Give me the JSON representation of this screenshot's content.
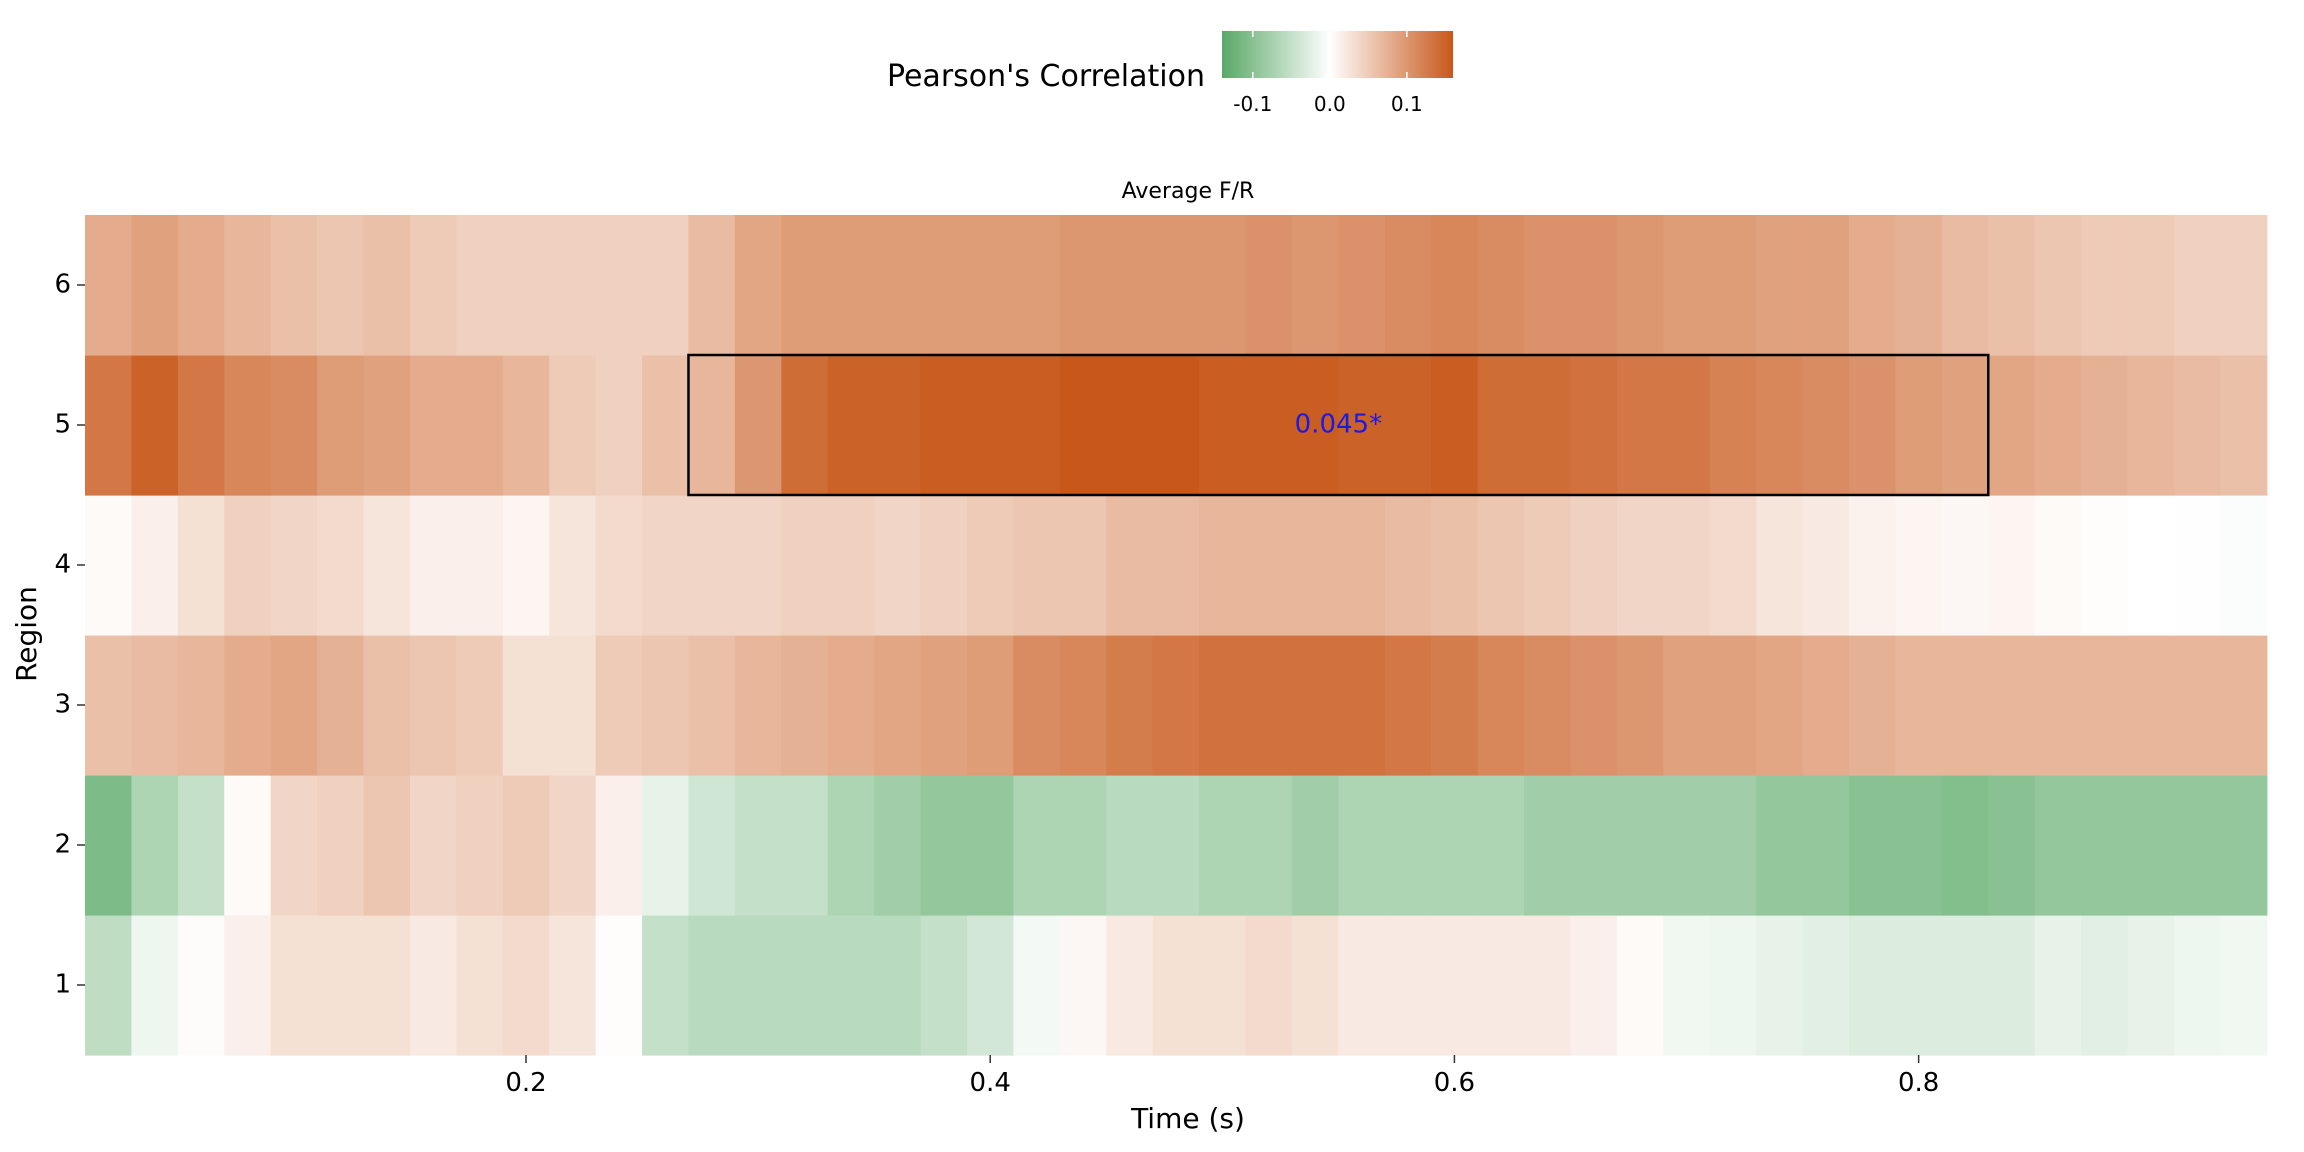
{
  "chart_data": {
    "type": "heatmap",
    "title": "Average F/R",
    "xlabel": "Time (s)",
    "ylabel": "Region",
    "xlim": [
      0.01,
      0.96
    ],
    "x_ticks": [
      "0.2",
      "0.4",
      "0.6",
      "0.8"
    ],
    "x_tick_values": [
      0.2,
      0.4,
      0.6,
      0.8
    ],
    "y_ticks": [
      "1",
      "2",
      "3",
      "4",
      "5",
      "6"
    ],
    "time_start": 0.01,
    "time_step": 0.02,
    "legend": {
      "title": "Pearson's Correlation",
      "ticks": [
        "-0.1",
        "0.0",
        "0.1"
      ],
      "tick_values": [
        -0.1,
        0.0,
        0.1
      ],
      "min": -0.14,
      "max": 0.16,
      "low_color": "#5aa867",
      "mid_color": "#ffffff",
      "high_color": "#c8581a",
      "position": "top"
    },
    "rows": [
      {
        "region": "1",
        "values": [
          -0.055,
          -0.015,
          0.003,
          0.015,
          0.03,
          0.03,
          0.03,
          0.02,
          0.03,
          0.035,
          0.025,
          0.002,
          -0.05,
          -0.06,
          -0.06,
          -0.06,
          -0.06,
          -0.06,
          -0.05,
          -0.038,
          -0.01,
          0.008,
          0.02,
          0.03,
          0.03,
          0.035,
          0.03,
          0.02,
          0.02,
          0.02,
          0.02,
          0.02,
          0.015,
          0.005,
          -0.012,
          -0.015,
          -0.02,
          -0.025,
          -0.03,
          -0.03,
          -0.03,
          -0.03,
          -0.02,
          -0.025,
          -0.02,
          -0.015,
          -0.012
        ]
      },
      {
        "region": "2",
        "values": [
          -0.11,
          -0.07,
          -0.05,
          0.005,
          0.04,
          0.045,
          0.055,
          0.04,
          0.045,
          0.05,
          0.04,
          0.015,
          -0.02,
          -0.04,
          -0.05,
          -0.05,
          -0.07,
          -0.08,
          -0.09,
          -0.09,
          -0.07,
          -0.07,
          -0.06,
          -0.06,
          -0.07,
          -0.07,
          -0.08,
          -0.07,
          -0.07,
          -0.07,
          -0.07,
          -0.08,
          -0.08,
          -0.08,
          -0.08,
          -0.08,
          -0.09,
          -0.09,
          -0.1,
          -0.1,
          -0.105,
          -0.1,
          -0.09,
          -0.09,
          -0.09,
          -0.09,
          -0.09
        ]
      },
      {
        "region": "3",
        "values": [
          0.06,
          0.065,
          0.07,
          0.08,
          0.085,
          0.075,
          0.06,
          0.055,
          0.05,
          0.03,
          0.03,
          0.05,
          0.055,
          0.06,
          0.07,
          0.075,
          0.08,
          0.085,
          0.09,
          0.095,
          0.11,
          0.115,
          0.125,
          0.13,
          0.135,
          0.135,
          0.135,
          0.135,
          0.13,
          0.125,
          0.115,
          0.11,
          0.105,
          0.1,
          0.09,
          0.09,
          0.085,
          0.08,
          0.075,
          0.07,
          0.07,
          0.07,
          0.07,
          0.07,
          0.07,
          0.07,
          0.07
        ]
      },
      {
        "region": "4",
        "values": [
          0.005,
          0.015,
          0.03,
          0.045,
          0.04,
          0.035,
          0.025,
          0.015,
          0.015,
          0.01,
          0.025,
          0.035,
          0.04,
          0.04,
          0.04,
          0.045,
          0.045,
          0.04,
          0.045,
          0.05,
          0.055,
          0.055,
          0.065,
          0.065,
          0.07,
          0.07,
          0.07,
          0.07,
          0.065,
          0.06,
          0.055,
          0.05,
          0.045,
          0.04,
          0.04,
          0.035,
          0.025,
          0.02,
          0.012,
          0.01,
          0.008,
          0.01,
          0.005,
          0.002,
          0.0,
          -0.002,
          -0.003
        ]
      },
      {
        "region": "5",
        "values": [
          0.13,
          0.15,
          0.13,
          0.115,
          0.11,
          0.095,
          0.09,
          0.08,
          0.08,
          0.07,
          0.05,
          0.045,
          0.06,
          0.07,
          0.1,
          0.14,
          0.15,
          0.15,
          0.155,
          0.155,
          0.155,
          0.16,
          0.16,
          0.16,
          0.155,
          0.155,
          0.155,
          0.15,
          0.15,
          0.155,
          0.14,
          0.14,
          0.135,
          0.13,
          0.13,
          0.12,
          0.115,
          0.11,
          0.105,
          0.095,
          0.09,
          0.085,
          0.08,
          0.075,
          0.07,
          0.065,
          0.06
        ]
      },
      {
        "region": "6",
        "values": [
          0.08,
          0.09,
          0.08,
          0.07,
          0.06,
          0.055,
          0.06,
          0.05,
          0.045,
          0.045,
          0.045,
          0.045,
          0.045,
          0.065,
          0.085,
          0.095,
          0.095,
          0.095,
          0.095,
          0.095,
          0.095,
          0.1,
          0.1,
          0.1,
          0.1,
          0.105,
          0.1,
          0.105,
          0.11,
          0.115,
          0.11,
          0.105,
          0.105,
          0.1,
          0.095,
          0.095,
          0.09,
          0.09,
          0.08,
          0.075,
          0.065,
          0.06,
          0.055,
          0.05,
          0.05,
          0.045,
          0.045
        ]
      }
    ],
    "highlight": {
      "region": "5",
      "time_from": 0.27,
      "time_to": 0.83,
      "label": "0.045*",
      "label_color": "#1a1ae6",
      "border_color": "#000000"
    },
    "grid": false
  }
}
